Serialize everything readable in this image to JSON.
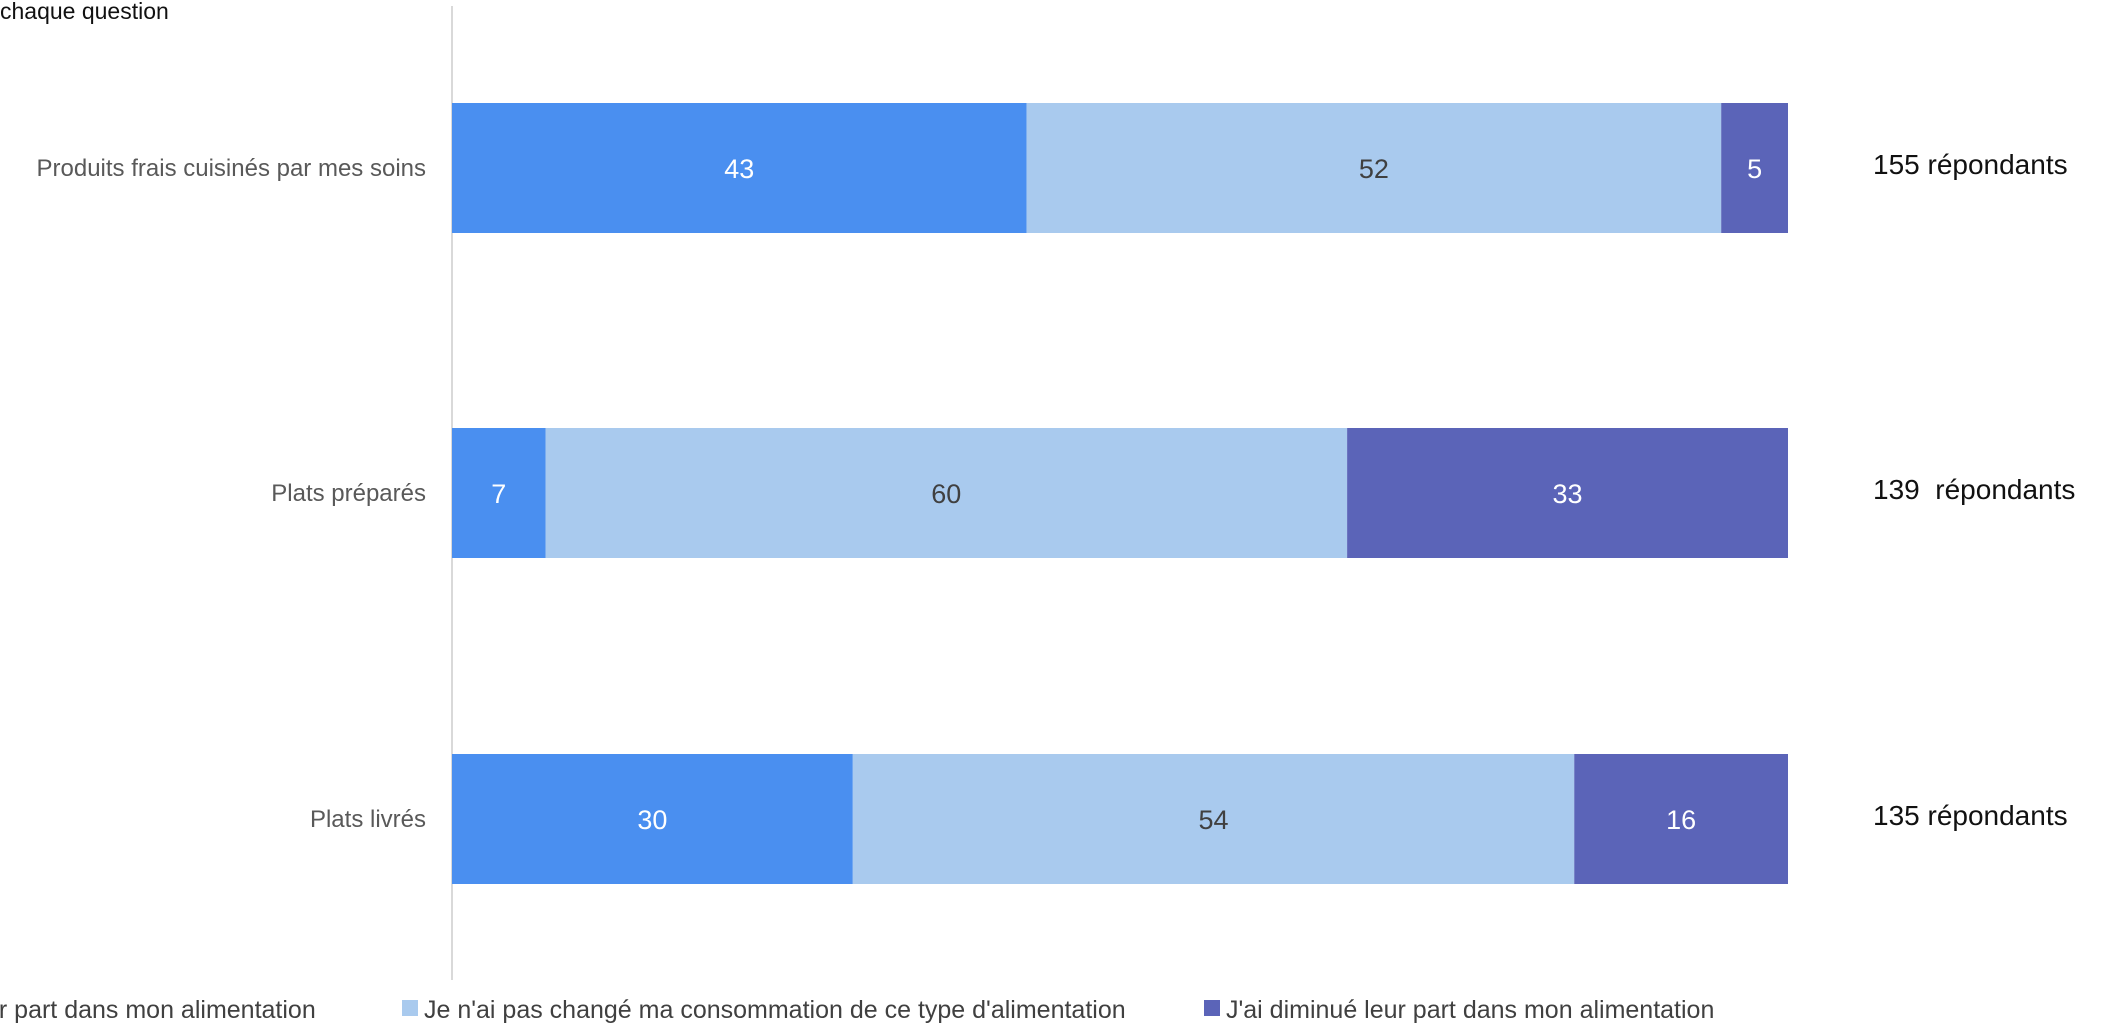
{
  "chart_data": {
    "type": "bar",
    "orientation": "horizontal",
    "stacked": true,
    "title": "",
    "top_note": "chaque question",
    "categories": [
      "Produits frais cuisinés par mes soins",
      "Plats préparés",
      "Plats livrés"
    ],
    "series": [
      {
        "name": "ur part dans mon alimentation",
        "color": "#4a8ff0",
        "values": [
          43,
          7,
          30
        ]
      },
      {
        "name": "Je n'ai pas changé ma consommation de ce type d'alimentation",
        "color": "#a9caee",
        "values": [
          52,
          60,
          54
        ]
      },
      {
        "name": "J'ai diminué leur part dans mon alimentation",
        "color": "#5b64b8",
        "values": [
          5,
          33,
          16
        ]
      }
    ],
    "respondents": [
      "155 répondants",
      "139  répondants",
      "135 répondants"
    ],
    "xlim": [
      0,
      100
    ],
    "grid": false,
    "legend_position": "bottom"
  }
}
